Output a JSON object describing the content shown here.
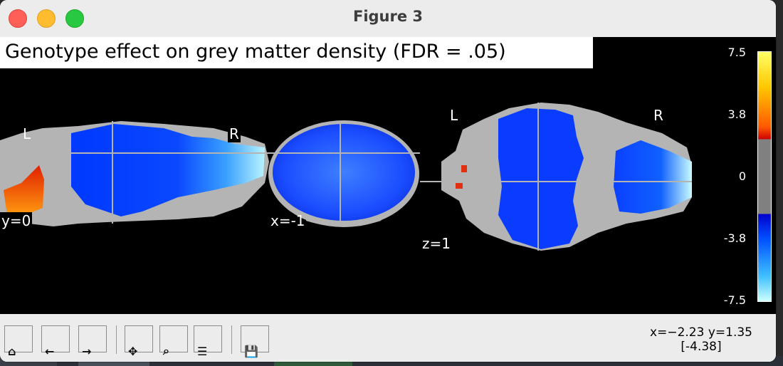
{
  "window": {
    "title": "Figure 3"
  },
  "figure": {
    "title": "Genotype effect on grey matter density (FDR = .05)",
    "sagittal": {
      "left_label": "L",
      "right_label": "R",
      "coord_label": "y=0"
    },
    "coronal": {
      "coord_label": "x=-1"
    },
    "axial": {
      "left_label": "L",
      "right_label": "R",
      "coord_label": "z=1"
    }
  },
  "colorbar": {
    "ticks": [
      "7.5",
      "3.8",
      "0",
      "-3.8",
      "-7.5"
    ],
    "max": 7.5,
    "min": -7.5,
    "threshold": 3.8,
    "colors": {
      "positive_top": "#ffff66",
      "positive_bottom": "#cc0000",
      "neutral": "#808080",
      "negative_top": "#0000cc",
      "negative_bottom": "#ccffff"
    }
  },
  "toolbar": {
    "buttons": [
      {
        "name": "home-button",
        "glyph": "⌂"
      },
      {
        "name": "back-button",
        "glyph": "←"
      },
      {
        "name": "forward-button",
        "glyph": "→"
      },
      {
        "name": "pan-button",
        "glyph": "✥"
      },
      {
        "name": "zoom-button",
        "glyph": "⌕"
      },
      {
        "name": "configure-subplots-button",
        "glyph": "☰"
      },
      {
        "name": "save-button",
        "glyph": "💾"
      }
    ],
    "status_coords": "x=−2.23 y=1.35",
    "status_value": "[-4.38]"
  }
}
